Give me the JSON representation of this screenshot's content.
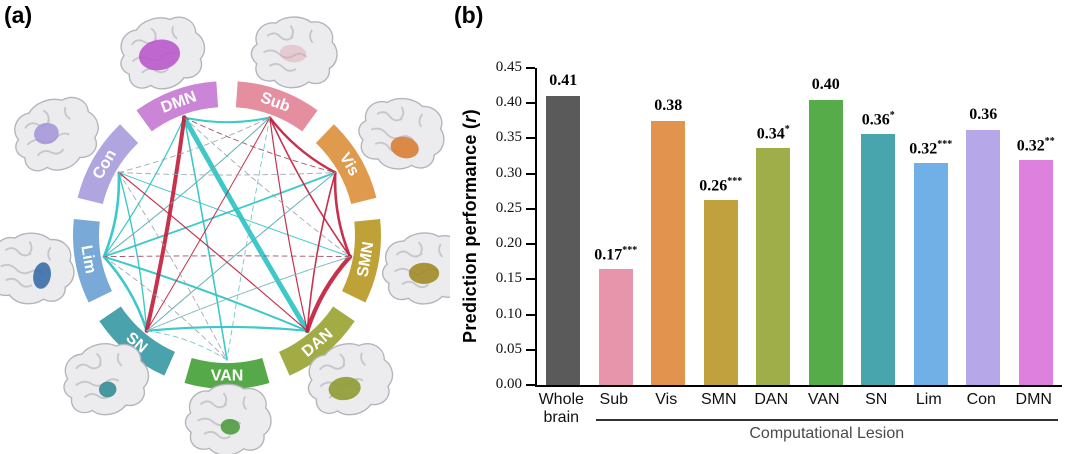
{
  "panels": {
    "a_label": "(a)",
    "b_label": "(b)"
  },
  "connectogram": {
    "nodes": [
      {
        "id": "DMN",
        "label": "DMN",
        "color": "#cb85d7",
        "patch_color": "#bb58cc",
        "patch_opacity": 0.9
      },
      {
        "id": "Sub",
        "label": "Sub",
        "color": "#e48e9f",
        "patch_color": "#e0a3b0",
        "patch_opacity": 0.45
      },
      {
        "id": "Vis",
        "label": "Vis",
        "color": "#e09a4e",
        "patch_color": "#d97f35",
        "patch_opacity": 0.9
      },
      {
        "id": "SMN",
        "label": "SMN",
        "color": "#bea238",
        "patch_color": "#a08b28",
        "patch_opacity": 0.9
      },
      {
        "id": "DAN",
        "label": "DAN",
        "color": "#a2ab44",
        "patch_color": "#8f9c33",
        "patch_opacity": 0.9
      },
      {
        "id": "VAN",
        "label": "VAN",
        "color": "#56a948",
        "patch_color": "#4e9e41",
        "patch_opacity": 0.9
      },
      {
        "id": "SN",
        "label": "SN",
        "color": "#49a2ac",
        "patch_color": "#368d98",
        "patch_opacity": 0.9
      },
      {
        "id": "Lim",
        "label": "Lim",
        "color": "#79a9d6",
        "patch_color": "#3a6ea8",
        "patch_opacity": 0.9
      },
      {
        "id": "Con",
        "label": "Con",
        "color": "#b1a5df",
        "patch_color": "#a393d8",
        "patch_opacity": 0.85
      }
    ],
    "edge_colors": {
      "positive": "#2cc3c6",
      "negative": "#c2203d",
      "positive_dashed": "#5fc4bd",
      "negative_dashed": "#9c4258",
      "gray_dashed": "#9aa2aa"
    },
    "edges": [
      {
        "from": "DMN",
        "to": "DAN",
        "type": "positive",
        "weight": 5
      },
      {
        "from": "DMN",
        "to": "Sub",
        "type": "positive",
        "weight": 2
      },
      {
        "from": "DMN",
        "to": "VAN",
        "type": "positive",
        "weight": 1.6
      },
      {
        "from": "DMN",
        "to": "Lim",
        "type": "positive",
        "weight": 1.2
      },
      {
        "from": "Lim",
        "to": "SN",
        "type": "positive",
        "weight": 2.6
      },
      {
        "from": "Lim",
        "to": "Con",
        "type": "positive",
        "weight": 2.6
      },
      {
        "from": "Lim",
        "to": "DAN",
        "type": "positive",
        "weight": 2
      },
      {
        "from": "Lim",
        "to": "Vis",
        "type": "positive",
        "weight": 1.8
      },
      {
        "from": "Lim",
        "to": "Sub",
        "type": "positive",
        "weight": 1
      },
      {
        "from": "SN",
        "to": "DAN",
        "type": "positive",
        "weight": 2.2
      },
      {
        "from": "SN",
        "to": "Con",
        "type": "positive",
        "weight": 1.4
      },
      {
        "from": "SN",
        "to": "Vis",
        "type": "positive",
        "weight": 1
      },
      {
        "from": "Con",
        "to": "SMN",
        "type": "positive",
        "weight": 1
      },
      {
        "from": "DMN",
        "to": "SN",
        "type": "negative",
        "weight": 4
      },
      {
        "from": "SMN",
        "to": "DAN",
        "type": "negative",
        "weight": 4.2
      },
      {
        "from": "Vis",
        "to": "SMN",
        "type": "negative",
        "weight": 2.6
      },
      {
        "from": "Sub",
        "to": "Vis",
        "type": "negative",
        "weight": 2.4
      },
      {
        "from": "Sub",
        "to": "SMN",
        "type": "negative",
        "weight": 1.6
      },
      {
        "from": "Sub",
        "to": "DAN",
        "type": "negative",
        "weight": 1.2
      },
      {
        "from": "Con",
        "to": "DAN",
        "type": "negative",
        "weight": 1.2
      },
      {
        "from": "Vis",
        "to": "DAN",
        "type": "negative",
        "weight": 1.6
      },
      {
        "from": "Sub",
        "to": "SN",
        "type": "negative",
        "weight": 1
      },
      {
        "from": "Con",
        "to": "Vis",
        "type": "gray_dashed",
        "weight": 0.9
      },
      {
        "from": "Con",
        "to": "Sub",
        "type": "gray_dashed",
        "weight": 0.9
      },
      {
        "from": "DMN",
        "to": "SMN",
        "type": "gray_dashed",
        "weight": 0.9
      },
      {
        "from": "DMN",
        "to": "Vis",
        "type": "negative_dashed",
        "weight": 0.9
      },
      {
        "from": "Sub",
        "to": "VAN",
        "type": "positive_dashed",
        "weight": 0.9
      },
      {
        "from": "Sub",
        "to": "Lim",
        "type": "gray_dashed",
        "weight": 0.9
      },
      {
        "from": "Vis",
        "to": "SN",
        "type": "gray_dashed",
        "weight": 0.9
      },
      {
        "from": "SMN",
        "to": "Lim",
        "type": "negative_dashed",
        "weight": 0.9
      },
      {
        "from": "SMN",
        "to": "SN",
        "type": "gray_dashed",
        "weight": 0.9
      },
      {
        "from": "Lim",
        "to": "VAN",
        "type": "gray_dashed",
        "weight": 0.9
      },
      {
        "from": "Con",
        "to": "VAN",
        "type": "gray_dashed",
        "weight": 0.9
      },
      {
        "from": "SN",
        "to": "VAN",
        "type": "positive_dashed",
        "weight": 0.9
      },
      {
        "from": "SN",
        "to": "SMN",
        "type": "positive_dashed",
        "weight": 0.9
      }
    ]
  },
  "chart_data": {
    "type": "bar",
    "ylabel_pre": "Prediction performance (",
    "ylabel_italic": "r",
    "ylabel_post": ")",
    "ylim": [
      0,
      0.45
    ],
    "ytick_step": 0.05,
    "grid": false,
    "categories": [
      "Whole brain",
      "Sub",
      "Vis",
      "SMN",
      "DAN",
      "VAN",
      "SN",
      "Lim",
      "Con",
      "DMN"
    ],
    "values": [
      0.41,
      0.17,
      0.38,
      0.26,
      0.34,
      0.4,
      0.36,
      0.32,
      0.36,
      0.32
    ],
    "bar_heights": [
      0.41,
      0.165,
      0.375,
      0.262,
      0.336,
      0.404,
      0.356,
      0.315,
      0.362,
      0.32
    ],
    "labels": [
      "0.41",
      "0.17",
      "0.38",
      "0.26",
      "0.34",
      "0.40",
      "0.36",
      "0.32",
      "0.36",
      "0.32"
    ],
    "significance": [
      "",
      "***",
      "",
      "***",
      "*",
      "",
      "*",
      "***",
      "",
      "**"
    ],
    "colors": [
      "#5a5a5a",
      "#e795aa",
      "#e2944e",
      "#c0a13e",
      "#9fae48",
      "#55ac49",
      "#48a4ad",
      "#70b0e6",
      "#b6a8e8",
      "#de80de"
    ],
    "group_label": "Computational Lesion",
    "group_range": [
      1,
      9
    ]
  }
}
